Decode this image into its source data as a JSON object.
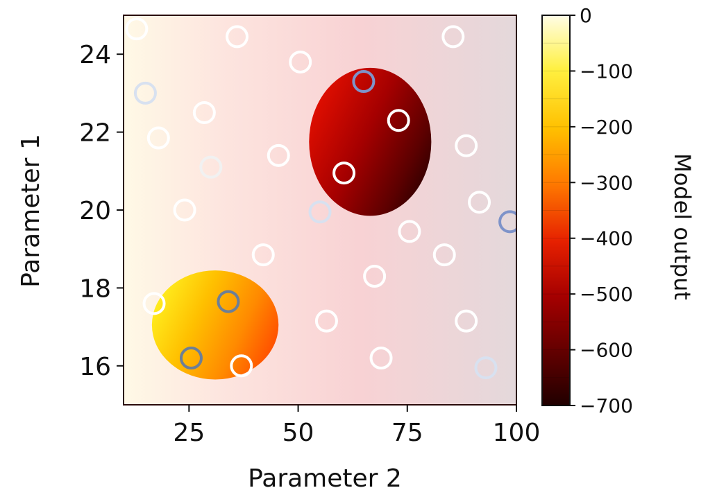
{
  "chart_data": {
    "type": "heatmap",
    "title": "",
    "xlabel": "Parameter 2",
    "ylabel": "Parameter 1",
    "xlim": [
      10,
      100
    ],
    "ylim": [
      15,
      25
    ],
    "x_ticks": [
      {
        "value": 25,
        "label": "25"
      },
      {
        "value": 50,
        "label": "50"
      },
      {
        "value": 75,
        "label": "75"
      },
      {
        "value": 100,
        "label": "100"
      }
    ],
    "y_ticks": [
      {
        "value": 16,
        "label": "16"
      },
      {
        "value": 18,
        "label": "18"
      },
      {
        "value": 20,
        "label": "20"
      },
      {
        "value": 22,
        "label": "22"
      },
      {
        "value": 24,
        "label": "24"
      }
    ],
    "colorbar": {
      "label": "Model output",
      "range": [
        -700,
        0
      ],
      "colormap": "hot",
      "ticks": [
        {
          "value": 0,
          "label": "0"
        },
        {
          "value": -100,
          "label": "−100"
        },
        {
          "value": -200,
          "label": "−200"
        },
        {
          "value": -300,
          "label": "−300"
        },
        {
          "value": -400,
          "label": "−400"
        },
        {
          "value": -500,
          "label": "−500"
        },
        {
          "value": -600,
          "label": "−600"
        },
        {
          "value": -700,
          "label": "−700"
        }
      ]
    },
    "regions": [
      {
        "center": [
          31,
          17.05
        ],
        "radius_x": 14.5,
        "radius_y": 1.4,
        "value_range": [
          -380,
          -160
        ]
      },
      {
        "center": [
          66.5,
          21.75
        ],
        "radius_x": 14,
        "radius_y": 1.9,
        "value_range": [
          -680,
          -460
        ]
      }
    ],
    "sample_points": [
      {
        "x": 13,
        "y": 24.65,
        "tone": "white"
      },
      {
        "x": 36,
        "y": 24.45,
        "tone": "white"
      },
      {
        "x": 50.5,
        "y": 23.8,
        "tone": "white"
      },
      {
        "x": 85.5,
        "y": 24.45,
        "tone": "white"
      },
      {
        "x": 15,
        "y": 23.0,
        "tone": "pale-blue"
      },
      {
        "x": 65,
        "y": 23.3,
        "tone": "blue"
      },
      {
        "x": 28.5,
        "y": 22.5,
        "tone": "white"
      },
      {
        "x": 73,
        "y": 22.3,
        "tone": "white"
      },
      {
        "x": 18,
        "y": 21.85,
        "tone": "white"
      },
      {
        "x": 88.5,
        "y": 21.65,
        "tone": "white"
      },
      {
        "x": 45.5,
        "y": 21.4,
        "tone": "white"
      },
      {
        "x": 30,
        "y": 21.1,
        "tone": "light-gray"
      },
      {
        "x": 60.5,
        "y": 20.95,
        "tone": "white"
      },
      {
        "x": 24,
        "y": 20.0,
        "tone": "white"
      },
      {
        "x": 55,
        "y": 19.95,
        "tone": "pale-blue"
      },
      {
        "x": 91.5,
        "y": 20.2,
        "tone": "white"
      },
      {
        "x": 98.5,
        "y": 19.7,
        "tone": "blue"
      },
      {
        "x": 75.5,
        "y": 19.45,
        "tone": "white"
      },
      {
        "x": 42,
        "y": 18.85,
        "tone": "white"
      },
      {
        "x": 83.5,
        "y": 18.85,
        "tone": "white"
      },
      {
        "x": 67.5,
        "y": 18.3,
        "tone": "white"
      },
      {
        "x": 17,
        "y": 17.6,
        "tone": "white"
      },
      {
        "x": 34,
        "y": 17.65,
        "tone": "slate"
      },
      {
        "x": 56.5,
        "y": 17.15,
        "tone": "white"
      },
      {
        "x": 88.5,
        "y": 17.15,
        "tone": "white"
      },
      {
        "x": 25.5,
        "y": 16.2,
        "tone": "slate"
      },
      {
        "x": 37,
        "y": 16.0,
        "tone": "white"
      },
      {
        "x": 69,
        "y": 16.2,
        "tone": "white"
      },
      {
        "x": 93,
        "y": 15.95,
        "tone": "pale-blue"
      }
    ],
    "colors": {
      "background_gradient": [
        "#fffbe8",
        "#fde8e0",
        "#f7d3d5",
        "#e6d6da"
      ],
      "point_white": "#ffffff",
      "point_pale_blue": "#d8e1f0",
      "point_blue": "#7e93c9",
      "point_slate": "#6d7f97",
      "point_light_gray": "#f1f1f1"
    }
  }
}
